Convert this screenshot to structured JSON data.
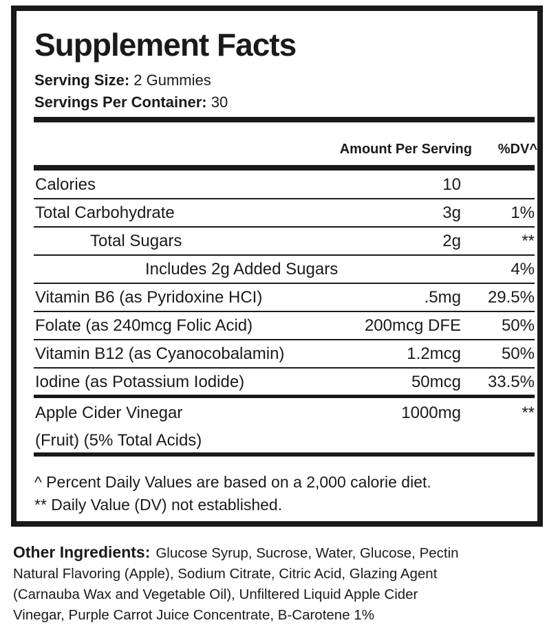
{
  "title": "Supplement Facts",
  "serving_size": {
    "label": "Serving Size:",
    "value": "2 Gummies"
  },
  "servings_per_container": {
    "label": "Servings Per Container:",
    "value": "30"
  },
  "header": {
    "amount": "Amount Per Serving",
    "dv": "%DV^"
  },
  "rows": [
    {
      "name": "Calories",
      "amount": "10",
      "dv": ""
    },
    {
      "name": "Total Carbohydrate",
      "amount": "3g",
      "dv": "1%"
    },
    {
      "name": "Total Sugars",
      "amount": "2g",
      "dv": "**"
    },
    {
      "name": "Includes 2g Added Sugars",
      "amount": "",
      "dv": "4%"
    },
    {
      "name": "Vitamin B6 (as Pyridoxine HCI)",
      "amount": ".5mg",
      "dv": "29.5%"
    },
    {
      "name": "Folate (as 240mcg Folic Acid)",
      "amount": "200mcg DFE",
      "dv": "50%"
    },
    {
      "name": "Vitamin B12 (as Cyanocobalamin)",
      "amount": "1.2mcg",
      "dv": "50%"
    },
    {
      "name": "Iodine (as Potassium Iodide)",
      "amount": "50mcg",
      "dv": "33.5%"
    }
  ],
  "acv": {
    "name_line1": "Apple Cider Vinegar",
    "name_line2": "(Fruit) (5% Total Acids)",
    "amount": "1000mg",
    "dv": "**"
  },
  "footnotes": [
    "^ Percent Daily Values are based on a 2,000 calorie diet.",
    "** Daily Value (DV) not established."
  ],
  "other_ingredients": {
    "label": "Other Ingredients:",
    "lines": [
      "Glucose Syrup, Sucrose, Water, Glucose, Pectin",
      "Natural Flavoring (Apple), Sodium Citrate, Citric Acid, Glazing Agent",
      "(Carnauba Wax and Vegetable Oil), Unfiltered Liquid Apple Cider",
      "Vinegar, Purple Carrot Juice Concentrate, B-Carotene 1%"
    ]
  }
}
